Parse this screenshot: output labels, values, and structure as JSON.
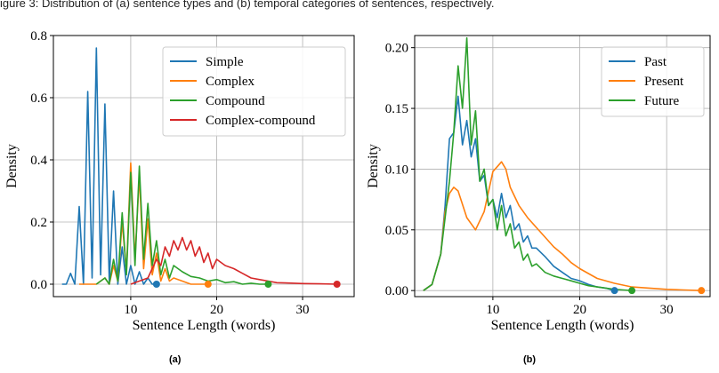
{
  "top_caption": "igure 3: Distribution of (a) sentence types and (b) temporal categories of sentences, respectively.",
  "panels": {
    "a": {
      "label": "(a)"
    },
    "b": {
      "label": "(b)"
    }
  },
  "chart_data": [
    {
      "type": "line",
      "xlabel": "Sentence Length (words)",
      "ylabel": "Density",
      "xlim": [
        1,
        36
      ],
      "ylim": [
        -0.04,
        0.8
      ],
      "xticks": [
        10,
        20,
        30
      ],
      "yticks": [
        0.0,
        0.2,
        0.4,
        0.6,
        0.8
      ],
      "ytick_labels": [
        "0.0",
        "0.2",
        "0.4",
        "0.6",
        "0.8"
      ],
      "grid": true,
      "legend_position": "top-right",
      "series": [
        {
          "name": "Simple",
          "color": "#1f77b4",
          "x": [
            2,
            2.5,
            3,
            3.5,
            4,
            4.5,
            5,
            5.5,
            6,
            6.5,
            7,
            7.5,
            8,
            8.5,
            9,
            9.5,
            10,
            10.5,
            11,
            11.5,
            12,
            12.5,
            13
          ],
          "y": [
            0.0,
            0.0,
            0.035,
            0.0,
            0.25,
            0.0,
            0.62,
            0.02,
            0.76,
            0.03,
            0.58,
            0.01,
            0.3,
            0.0,
            0.12,
            0.0,
            0.06,
            0.0,
            0.04,
            0.0,
            0.02,
            0.0,
            0.0
          ]
        },
        {
          "name": "Complex",
          "color": "#ff7f0e",
          "x": [
            4,
            5,
            6,
            7,
            7.5,
            8,
            8.5,
            9,
            9.5,
            10,
            10.5,
            11,
            11.5,
            12,
            12.5,
            13,
            13.5,
            14,
            14.5,
            15,
            16,
            17,
            18,
            19
          ],
          "y": [
            0.0,
            0.0,
            0.0,
            0.02,
            0.0,
            0.06,
            0.01,
            0.2,
            0.04,
            0.39,
            0.08,
            0.35,
            0.05,
            0.21,
            0.03,
            0.1,
            0.01,
            0.05,
            0.01,
            0.02,
            0.01,
            0.0,
            0.0,
            0.0
          ]
        },
        {
          "name": "Compound",
          "color": "#2ca02c",
          "x": [
            6,
            7,
            7.5,
            8,
            8.5,
            9,
            9.5,
            10,
            10.5,
            11,
            11.5,
            12,
            12.5,
            13,
            13.5,
            14,
            14.5,
            15,
            16,
            17,
            18,
            19,
            20,
            21,
            22,
            23,
            24,
            25,
            26
          ],
          "y": [
            0.0,
            0.02,
            0.0,
            0.08,
            0.01,
            0.23,
            0.03,
            0.36,
            0.06,
            0.38,
            0.08,
            0.26,
            0.06,
            0.14,
            0.03,
            0.08,
            0.02,
            0.06,
            0.04,
            0.025,
            0.02,
            0.01,
            0.015,
            0.005,
            0.008,
            0.0,
            0.003,
            0.0,
            0.0
          ]
        },
        {
          "name": "Complex-compound",
          "color": "#d62728",
          "x": [
            10,
            11,
            12,
            13,
            13.5,
            14,
            14.5,
            15,
            15.5,
            16,
            16.5,
            17,
            17.5,
            18,
            18.5,
            19,
            19.5,
            20,
            21,
            22,
            23,
            24,
            25,
            26,
            27,
            28,
            30,
            32,
            34
          ],
          "y": [
            0.0,
            0.01,
            0.02,
            0.08,
            0.06,
            0.12,
            0.09,
            0.14,
            0.11,
            0.15,
            0.11,
            0.14,
            0.09,
            0.12,
            0.07,
            0.1,
            0.05,
            0.08,
            0.06,
            0.05,
            0.035,
            0.02,
            0.015,
            0.01,
            0.005,
            0.004,
            0.002,
            0.001,
            0.0
          ]
        }
      ],
      "end_markers": [
        {
          "series": "Simple",
          "x": 13,
          "y": 0.0
        },
        {
          "series": "Complex",
          "x": 19,
          "y": 0.0
        },
        {
          "series": "Compound",
          "x": 26,
          "y": 0.0
        },
        {
          "series": "Complex-compound",
          "x": 34,
          "y": 0.0
        }
      ]
    },
    {
      "type": "line",
      "xlabel": "Sentence Length (words)",
      "ylabel": "Density",
      "xlim": [
        1,
        35
      ],
      "ylim": [
        -0.005,
        0.21
      ],
      "xticks": [
        10,
        20,
        30
      ],
      "yticks": [
        0.0,
        0.05,
        0.1,
        0.15,
        0.2
      ],
      "ytick_labels": [
        "0.00",
        "0.05",
        "0.10",
        "0.15",
        "0.20"
      ],
      "grid": true,
      "legend_position": "top-right",
      "series": [
        {
          "name": "Past",
          "color": "#1f77b4",
          "x": [
            2,
            3,
            4,
            4.5,
            5,
            5.5,
            6,
            6.5,
            7,
            7.5,
            8,
            8.5,
            9,
            9.5,
            10,
            10.5,
            11,
            11.5,
            12,
            12.5,
            13,
            13.5,
            14,
            14.5,
            15,
            16,
            17,
            18,
            19,
            20,
            21,
            22,
            23,
            24
          ],
          "y": [
            0.0,
            0.005,
            0.03,
            0.07,
            0.125,
            0.13,
            0.16,
            0.12,
            0.14,
            0.11,
            0.125,
            0.09,
            0.095,
            0.07,
            0.075,
            0.06,
            0.08,
            0.06,
            0.07,
            0.05,
            0.055,
            0.04,
            0.045,
            0.035,
            0.035,
            0.028,
            0.02,
            0.015,
            0.01,
            0.008,
            0.005,
            0.003,
            0.002,
            0.0
          ]
        },
        {
          "name": "Present",
          "color": "#ff7f0e",
          "x": [
            2,
            3,
            4,
            4.5,
            5,
            5.5,
            6,
            7,
            8,
            9,
            10,
            10.5,
            11,
            11.5,
            12,
            13,
            14,
            15,
            16,
            17,
            18,
            19,
            20,
            21,
            22,
            24,
            26,
            28,
            30,
            32,
            34
          ],
          "y": [
            0.0,
            0.005,
            0.03,
            0.065,
            0.08,
            0.085,
            0.082,
            0.06,
            0.05,
            0.065,
            0.098,
            0.102,
            0.106,
            0.1,
            0.085,
            0.07,
            0.06,
            0.052,
            0.044,
            0.036,
            0.03,
            0.023,
            0.018,
            0.014,
            0.01,
            0.006,
            0.003,
            0.002,
            0.001,
            0.0005,
            0.0
          ]
        },
        {
          "name": "Future",
          "color": "#2ca02c",
          "x": [
            2,
            3,
            4,
            4.5,
            5,
            5.5,
            6,
            6.5,
            7,
            7.5,
            8,
            8.5,
            9,
            9.5,
            10,
            10.5,
            11,
            11.5,
            12,
            12.5,
            13,
            13.5,
            14,
            14.5,
            15,
            16,
            17,
            18,
            19,
            20,
            21,
            22,
            23,
            24,
            25,
            26
          ],
          "y": [
            0.0,
            0.005,
            0.03,
            0.06,
            0.09,
            0.13,
            0.185,
            0.15,
            0.208,
            0.12,
            0.148,
            0.09,
            0.1,
            0.07,
            0.075,
            0.05,
            0.07,
            0.045,
            0.055,
            0.035,
            0.04,
            0.025,
            0.03,
            0.02,
            0.022,
            0.015,
            0.012,
            0.01,
            0.008,
            0.006,
            0.004,
            0.003,
            0.002,
            0.001,
            0.0005,
            0.0
          ]
        }
      ],
      "end_markers": [
        {
          "series": "Past",
          "x": 24,
          "y": 0.0
        },
        {
          "series": "Future",
          "x": 26,
          "y": 0.0
        },
        {
          "series": "Present",
          "x": 34,
          "y": 0.0
        }
      ]
    }
  ]
}
